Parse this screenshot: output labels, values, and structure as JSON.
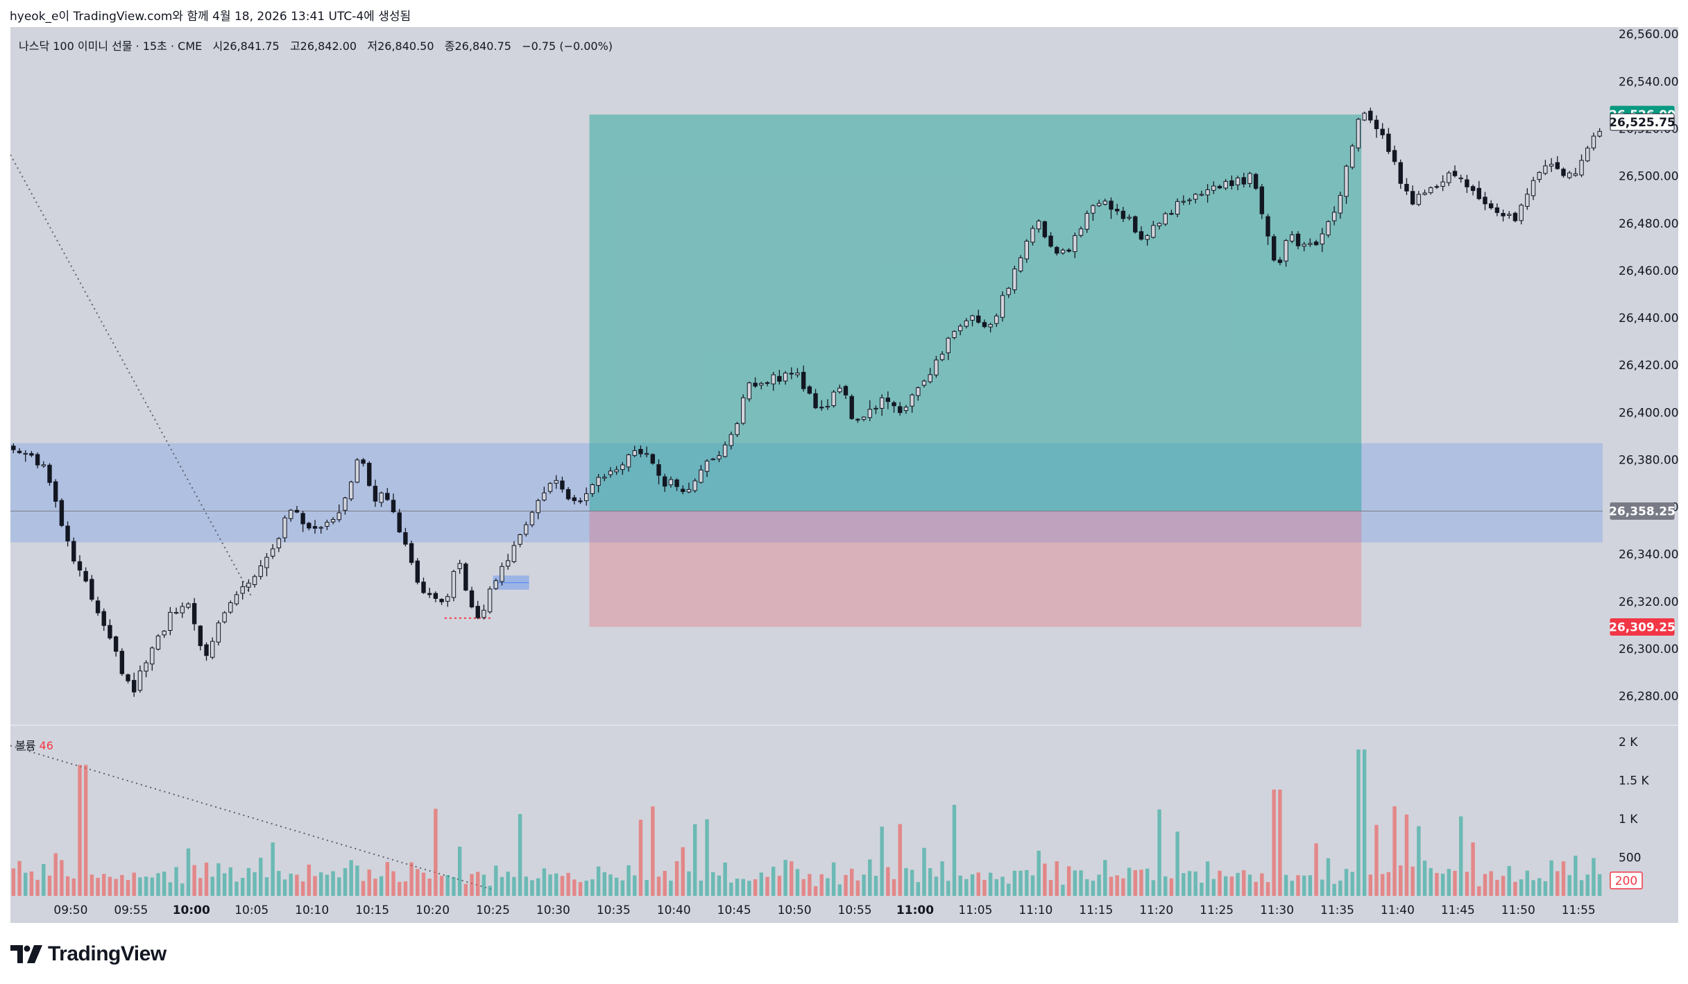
{
  "caption": "hyeok_e이 TradingView.com와 함께 4월 18, 2026 13:41 UTC-4에 생성됨",
  "legend": {
    "symbol": "나스닥 100 이미니 선물 · 15초 · CME",
    "open": "시26,841.75",
    "high": "고26,842.00",
    "low": "저26,840.50",
    "close": "종26,840.75",
    "change": "−0.75 (−0.00%)"
  },
  "volume_pane": {
    "label": "볼륨",
    "value": "46"
  },
  "brand": "TradingView",
  "colors": {
    "background": "#d1d4dc",
    "up": "#26a69a",
    "down": "#ef5350",
    "profit_zone": "#26a69a",
    "loss_zone": "#f23645",
    "blue_zone": "#5b8def",
    "candle": "#131722"
  },
  "price_badges": [
    {
      "text": "26,526.00",
      "price": 26526.0,
      "bg": "#089981",
      "fg": "#ffffff"
    },
    {
      "text": "26,525.75",
      "price": 26525.75,
      "bg": "#ffffff",
      "fg": "#131722"
    },
    {
      "text": "26,358.25",
      "price": 26358.25,
      "bg": "#787b86",
      "fg": "#ffffff"
    },
    {
      "text": "26,309.25",
      "price": 26309.25,
      "bg": "#f23645",
      "fg": "#ffffff"
    }
  ],
  "volume_badge": {
    "text": "200",
    "value": 200
  },
  "chart_data": {
    "type": "candlestick",
    "time_start": "09:45",
    "time_end": "11:57",
    "y_axis": {
      "ticks": [
        "26,560.00",
        "26,540.00",
        "26,520.00",
        "26,500.00",
        "26,480.00",
        "26,460.00",
        "26,440.00",
        "26,420.00",
        "26,400.00",
        "26,380.00",
        "26,360.00",
        "26,340.00",
        "26,320.00",
        "26,300.00",
        "26,280.00"
      ],
      "tick_values": [
        26560,
        26540,
        26520,
        26500,
        26480,
        26460,
        26440,
        26420,
        26400,
        26380,
        26360,
        26340,
        26320,
        26300,
        26280
      ],
      "range": [
        26268,
        26563
      ]
    },
    "x_axis": {
      "ticks": [
        "09:50",
        "09:55",
        "10:00",
        "10:05",
        "10:10",
        "10:15",
        "10:20",
        "10:25",
        "10:30",
        "10:35",
        "10:40",
        "10:45",
        "10:50",
        "10:55",
        "11:00",
        "11:05",
        "11:10",
        "11:15",
        "11:20",
        "11:25",
        "11:30",
        "11:35",
        "11:40",
        "11:45",
        "11:50",
        "11:55"
      ],
      "bold": [
        "10:00",
        "11:00"
      ]
    },
    "volume_axis": {
      "ticks": [
        "2 K",
        "1.5 K",
        "1 K",
        "500"
      ],
      "tick_values": [
        2000,
        1500,
        1000,
        500
      ],
      "range": [
        0,
        2000
      ]
    },
    "path": [
      [
        "09:45",
        26386
      ],
      [
        "09:48",
        26376
      ],
      [
        "09:50",
        26342
      ],
      [
        "09:53",
        26306
      ],
      [
        "09:55",
        26282
      ],
      [
        "09:57",
        26302
      ],
      [
        "09:59",
        26320
      ],
      [
        "10:00",
        26318
      ],
      [
        "10:01",
        26296
      ],
      [
        "10:03",
        26318
      ],
      [
        "10:05",
        26330
      ],
      [
        "10:07",
        26345
      ],
      [
        "10:08",
        26360
      ],
      [
        "10:10",
        26350
      ],
      [
        "10:12",
        26355
      ],
      [
        "10:13",
        26364
      ],
      [
        "10:14",
        26385
      ],
      [
        "10:15",
        26362
      ],
      [
        "10:16",
        26365
      ],
      [
        "10:17",
        26355
      ],
      [
        "10:19",
        26325
      ],
      [
        "10:21",
        26318
      ],
      [
        "10:22",
        26340
      ],
      [
        "10:23",
        26320
      ],
      [
        "10:24",
        26315
      ],
      [
        "10:25",
        26328
      ],
      [
        "10:27",
        26345
      ],
      [
        "10:30",
        26372
      ],
      [
        "10:32",
        26360
      ],
      [
        "10:34",
        26374
      ],
      [
        "10:36",
        26380
      ],
      [
        "10:37",
        26385
      ],
      [
        "10:39",
        26372
      ],
      [
        "10:41",
        26366
      ],
      [
        "10:43",
        26380
      ],
      [
        "10:45",
        26392
      ],
      [
        "10:46",
        26410
      ],
      [
        "10:48",
        26413
      ],
      [
        "10:50",
        26418
      ],
      [
        "10:52",
        26400
      ],
      [
        "10:54",
        26410
      ],
      [
        "10:55",
        26395
      ],
      [
        "10:57",
        26405
      ],
      [
        "10:59",
        26400
      ],
      [
        "11:00",
        26410
      ],
      [
        "11:02",
        26422
      ],
      [
        "11:04",
        26440
      ],
      [
        "11:06",
        26435
      ],
      [
        "11:08",
        26455
      ],
      [
        "11:09",
        26470
      ],
      [
        "11:10",
        26482
      ],
      [
        "11:12",
        26465
      ],
      [
        "11:13",
        26472
      ],
      [
        "11:14",
        26480
      ],
      [
        "11:15",
        26490
      ],
      [
        "11:17",
        26485
      ],
      [
        "11:19",
        26473
      ],
      [
        "11:20",
        26480
      ],
      [
        "11:22",
        26490
      ],
      [
        "11:24",
        26493
      ],
      [
        "11:26",
        26497
      ],
      [
        "11:28",
        26500
      ],
      [
        "11:29",
        26478
      ],
      [
        "11:30",
        26460
      ],
      [
        "11:31",
        26475
      ],
      [
        "11:33",
        26470
      ],
      [
        "11:35",
        26488
      ],
      [
        "11:36",
        26508
      ],
      [
        "11:37",
        26530
      ],
      [
        "11:38",
        26522
      ],
      [
        "11:40",
        26503
      ],
      [
        "11:41",
        26488
      ],
      [
        "11:43",
        26495
      ],
      [
        "11:45",
        26500
      ],
      [
        "11:47",
        26490
      ],
      [
        "11:48",
        26486
      ],
      [
        "11:50",
        26482
      ],
      [
        "11:51",
        26495
      ],
      [
        "11:52",
        26505
      ],
      [
        "11:54",
        26500
      ],
      [
        "11:55",
        26504
      ],
      [
        "11:56",
        26515
      ],
      [
        "11:57",
        26522
      ]
    ],
    "current_price": 26358.25,
    "position": {
      "type": "long",
      "start": "10:33",
      "end": "11:37",
      "entry": 26358.25,
      "target": 26526.0,
      "stop": 26309.25
    },
    "zone": {
      "top": 26387,
      "bottom": 26345
    },
    "small_zone": {
      "start": "10:25",
      "end": "10:28",
      "top": 26331,
      "bottom": 26325
    },
    "dotted_level": {
      "start": "10:21",
      "end": "10:25",
      "price": 26313
    },
    "trendline": {
      "start": [
        "09:45",
        26509
      ],
      "end": [
        "10:05",
        26322
      ]
    },
    "volume_trendline": {
      "start": [
        "09:45",
        1950
      ],
      "end": [
        "10:25",
        80
      ]
    }
  }
}
